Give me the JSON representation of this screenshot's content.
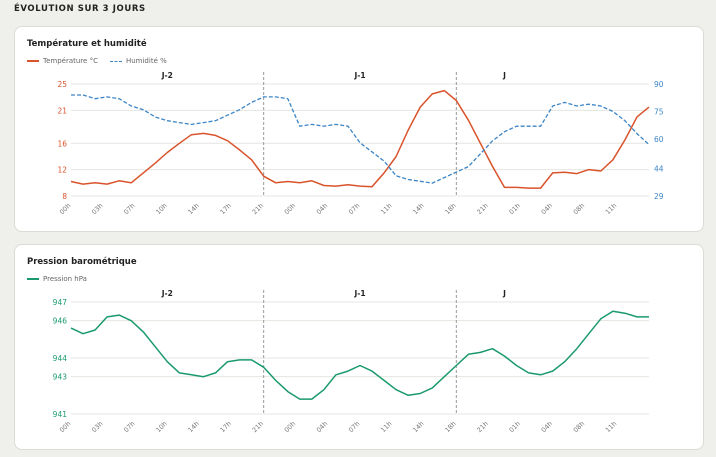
{
  "page": {
    "title": "ÉVOLUTION SUR 3 JOURS"
  },
  "colors": {
    "temperature": "#d9532b",
    "humidity": "#3d85c6",
    "pressure": "#1a9a6c",
    "grid": "#e4e4e0",
    "day_divider": "#9a9a9a"
  },
  "temp_card": {
    "title": "Température et humidité",
    "legend_temp": "Température °C",
    "legend_hum": "Humidité %"
  },
  "press_card": {
    "title": "Pression barométrique",
    "legend_press": "Pression hPa"
  },
  "chart_data": [
    {
      "type": "line",
      "title": "Température et humidité",
      "x_ticks": [
        "00h",
        "03h",
        "07h",
        "10h",
        "14h",
        "17h",
        "21h",
        "00h",
        "04h",
        "07h",
        "11h",
        "14h",
        "18h",
        "21h",
        "01h",
        "04h",
        "08h",
        "11h"
      ],
      "day_labels": [
        "J-2",
        "J-1",
        "J"
      ],
      "y_left": {
        "unit": "°C",
        "ticks": [
          8,
          12,
          16,
          21,
          25
        ],
        "lim": [
          8,
          25
        ]
      },
      "y_right": {
        "unit": "%",
        "ticks": [
          29,
          44,
          60,
          75,
          90
        ],
        "lim": [
          29,
          90
        ]
      },
      "series": [
        {
          "name": "Température °C",
          "axis": "left",
          "style": "solid",
          "x": [
            0,
            1.5,
            3,
            4.5,
            6,
            7.5,
            9,
            10.5,
            12,
            13.5,
            15,
            16.5,
            18,
            19.5,
            21,
            22.5,
            24,
            25.5,
            27,
            28.5,
            30,
            31.5,
            33,
            34.5,
            36,
            37.5,
            39,
            40.5,
            42,
            43.5,
            45,
            46.5,
            48,
            49.5,
            51,
            52.5,
            54,
            55.5,
            57,
            58.5,
            60,
            61.5,
            63,
            64.5,
            66,
            67.5,
            69,
            70.5,
            72
          ],
          "y": [
            10.2,
            9.8,
            10,
            9.8,
            10.3,
            10,
            11.5,
            13,
            14.6,
            16,
            17.3,
            17.5,
            17.2,
            16.4,
            15,
            13.5,
            11,
            10,
            10.2,
            10,
            10.3,
            9.6,
            9.5,
            9.7,
            9.5,
            9.4,
            11.5,
            14,
            18,
            21.5,
            23.5,
            24,
            22.5,
            19.5,
            16,
            12.5,
            9.3,
            9.3,
            9.2,
            9.2,
            11.5,
            11.6,
            11.4,
            12,
            11.8,
            13.5,
            16.5,
            20,
            21.5
          ]
        },
        {
          "name": "Humidité %",
          "axis": "right",
          "style": "dashed",
          "x": [
            0,
            1.5,
            3,
            4.5,
            6,
            7.5,
            9,
            10.5,
            12,
            13.5,
            15,
            16.5,
            18,
            19.5,
            21,
            22.5,
            24,
            25.5,
            27,
            28.5,
            30,
            31.5,
            33,
            34.5,
            36,
            37.5,
            39,
            40.5,
            42,
            43.5,
            45,
            46.5,
            48,
            49.5,
            51,
            52.5,
            54,
            55.5,
            57,
            58.5,
            60,
            61.5,
            63,
            64.5,
            66,
            67.5,
            69,
            70.5,
            72
          ],
          "y": [
            84,
            84,
            82,
            83,
            82,
            78,
            76,
            72,
            70,
            69,
            68,
            69,
            70,
            73,
            76,
            80,
            83,
            83,
            82,
            67,
            68,
            67,
            68,
            67,
            58,
            53,
            48,
            40,
            38,
            37,
            36,
            39,
            42,
            45,
            52,
            59,
            64,
            67,
            67,
            67,
            78,
            80,
            78,
            79,
            78,
            75,
            70,
            63,
            57
          ]
        }
      ]
    },
    {
      "type": "line",
      "title": "Pression barométrique",
      "x_ticks": [
        "00h",
        "03h",
        "07h",
        "10h",
        "14h",
        "17h",
        "21h",
        "00h",
        "04h",
        "07h",
        "11h",
        "14h",
        "18h",
        "21h",
        "01h",
        "04h",
        "08h",
        "11h"
      ],
      "day_labels": [
        "J-2",
        "J-1",
        "J"
      ],
      "y_left": {
        "unit": "hPa",
        "ticks": [
          941,
          943,
          944,
          946,
          947
        ],
        "lim": [
          941,
          947
        ]
      },
      "series": [
        {
          "name": "Pression hPa",
          "axis": "left",
          "style": "solid",
          "x": [
            0,
            1.5,
            3,
            4.5,
            6,
            7.5,
            9,
            10.5,
            12,
            13.5,
            15,
            16.5,
            18,
            19.5,
            21,
            22.5,
            24,
            25.5,
            27,
            28.5,
            30,
            31.5,
            33,
            34.5,
            36,
            37.5,
            39,
            40.5,
            42,
            43.5,
            45,
            46.5,
            48,
            49.5,
            51,
            52.5,
            54,
            55.5,
            57,
            58.5,
            60,
            61.5,
            63,
            64.5,
            66,
            67.5,
            69,
            70.5,
            72
          ],
          "y": [
            945.6,
            945.3,
            945.5,
            946.2,
            946.3,
            946.0,
            945.4,
            944.6,
            943.8,
            943.2,
            943.1,
            943.0,
            943.2,
            943.8,
            943.9,
            943.9,
            943.5,
            942.8,
            942.2,
            941.8,
            941.8,
            942.3,
            943.1,
            943.3,
            943.6,
            943.3,
            942.8,
            942.3,
            942.0,
            942.1,
            942.4,
            943.0,
            943.6,
            944.2,
            944.3,
            944.5,
            944.1,
            943.6,
            943.2,
            943.1,
            943.3,
            943.8,
            944.5,
            945.3,
            946.1,
            946.5,
            946.4,
            946.2,
            946.2
          ]
        }
      ]
    }
  ]
}
